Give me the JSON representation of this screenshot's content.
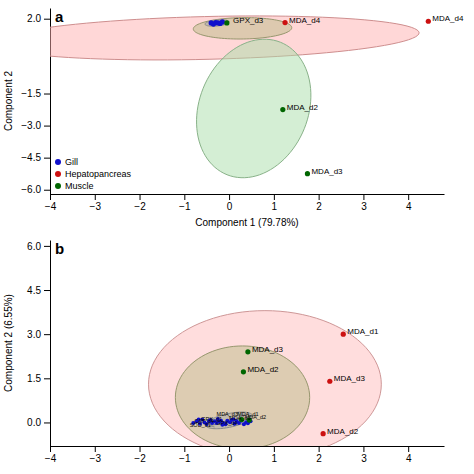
{
  "chart_data": [
    {
      "type": "scatter",
      "title": "a",
      "x_label": "Component 1 (79.78%)",
      "y_label": "Component 2",
      "xlim": [
        -4,
        4.8
      ],
      "ylim": [
        -6.2,
        2.5
      ],
      "xticks": [
        {
          "value": -4,
          "label": "−4"
        },
        {
          "value": -3,
          "label": "−3"
        },
        {
          "value": -2,
          "label": "−2"
        },
        {
          "value": -1,
          "label": "−1"
        },
        0,
        1,
        2,
        3,
        4
      ],
      "yticks": [
        {
          "value": 2.0,
          "label": "2.0"
        },
        {
          "value": -1.5,
          "label": "−1.5"
        },
        {
          "value": -3.0,
          "label": "−3.0"
        },
        {
          "value": -4.5,
          "label": "−4.5"
        },
        {
          "value": -6.0,
          "label": "−6.0"
        }
      ],
      "legend": "lower left",
      "series": [
        {
          "name": "Gill",
          "color": "#1010cc",
          "x": [
            -0.3,
            -0.2,
            -0.35,
            -0.15,
            -0.25,
            -0.4
          ],
          "values": [
            1.82,
            1.78,
            1.75,
            1.85,
            1.8,
            1.8
          ]
        },
        {
          "name": "Hepatopancreas",
          "color": "#cc1010",
          "x": [
            1.25,
            4.45
          ],
          "values": [
            1.82,
            1.88
          ]
        },
        {
          "name": "Muscle",
          "color": "#006600",
          "x": [
            -0.05,
            1.2,
            1.75
          ],
          "values": [
            1.8,
            -2.25,
            -5.25
          ]
        }
      ],
      "ellipses": [
        {
          "cx": -0.5,
          "cy": 1.1,
          "width": 9.5,
          "height": 2.0,
          "angle": 3,
          "color": "#ffb0b0"
        },
        {
          "cx": 0.3,
          "cy": 1.55,
          "width": 2.2,
          "height": 1.0,
          "angle": 2,
          "color": "#bbbb88"
        },
        {
          "cx": 0.55,
          "cy": -2.2,
          "width": 2.5,
          "height": 6.5,
          "angle": -5,
          "color": "#aaddaa"
        },
        {
          "cx": -0.27,
          "cy": 1.8,
          "width": 0.55,
          "height": 0.28,
          "angle": 15,
          "color": "#aaaaaa"
        }
      ],
      "annotations": [
        {
          "x": 0.0,
          "y": 1.8,
          "text": "GPX_d3"
        },
        {
          "x": 1.25,
          "y": 1.82,
          "text": "MDA_d4"
        },
        {
          "x": 4.45,
          "y": 1.88,
          "text": "MDA_d4"
        },
        {
          "x": 1.2,
          "y": -2.25,
          "text": "MDA_d2"
        },
        {
          "x": 1.75,
          "y": -5.25,
          "text": "MDA_d3"
        }
      ]
    },
    {
      "type": "scatter",
      "title": "b",
      "y_label": "Component 2 (6.55%)",
      "xlim": [
        -4,
        4.8
      ],
      "ylim": [
        -0.8,
        6.2
      ],
      "xticks": [
        {
          "value": -4,
          "label": "−4"
        },
        {
          "value": -3,
          "label": "−3"
        },
        {
          "value": -2,
          "label": "−2"
        },
        {
          "value": -1,
          "label": "−1"
        },
        0,
        1,
        2,
        3,
        4
      ],
      "yticks": [
        {
          "value": 0.0,
          "label": "0.0"
        },
        {
          "value": 1.5,
          "label": "1.5"
        },
        {
          "value": 3.0,
          "label": "3.0"
        },
        {
          "value": 4.5,
          "label": "4.5"
        },
        {
          "value": 6.0,
          "label": "6.0"
        }
      ],
      "series": [
        {
          "color": "#1010cc",
          "x": [
            -0.55,
            -0.45,
            -0.38,
            -0.5,
            -0.42,
            -0.32,
            -0.28,
            -0.6,
            -0.65,
            -0.22,
            -0.18,
            -0.12,
            -0.72,
            -0.68,
            -0.8,
            -0.08,
            -0.04,
            0.02,
            0.06,
            0.12,
            0.17,
            0.22,
            0.27,
            0.33,
            0.38,
            0.42,
            0.48,
            -0.15,
            -0.25,
            0.1
          ],
          "values": [
            0.0,
            0.05,
            -0.02,
            -0.05,
            0.08,
            0.04,
            -0.02,
            0.1,
            -0.04,
            0.02,
            0.06,
            -0.03,
            0.04,
            0.1,
            -0.02,
            -0.06,
            0.06,
            0.01,
            0.08,
            -0.04,
            0.04,
            -0.02,
            0.06,
            -0.06,
            0.01,
            -0.03,
            0.04,
            -0.08,
            0.12,
            0.1
          ]
        },
        {
          "color": "#cc1010",
          "x": [
            2.55,
            2.25,
            2.1
          ],
          "values": [
            3.0,
            1.4,
            -0.38
          ]
        },
        {
          "color": "#006600",
          "x": [
            0.42,
            0.32,
            0.28,
            0.45
          ],
          "values": [
            2.4,
            1.72,
            0.1,
            0.08
          ]
        }
      ],
      "ellipses": [
        {
          "cx": 0.8,
          "cy": 1.3,
          "width": 5.2,
          "height": 5.0,
          "angle": 0,
          "color": "#ffbbbb"
        },
        {
          "cx": 0.3,
          "cy": 0.85,
          "width": 3.0,
          "height": 3.5,
          "angle": 0,
          "color": "#bbbb88"
        },
        {
          "cx": 0.0,
          "cy": 0.07,
          "width": 1.1,
          "height": 0.45,
          "angle": 20,
          "color": "#aaaaaa"
        }
      ],
      "arrows": [
        {
          "x": [
            0.0,
            0.35
          ],
          "y": [
            0.0,
            0.25
          ],
          "color": "gray"
        },
        {
          "x": [
            0.0,
            -0.45
          ],
          "y": [
            0.0,
            -0.1
          ],
          "color": "gray"
        }
      ],
      "annotations": [
        {
          "x": 2.55,
          "y": 3.0,
          "text": "MDA_d1"
        },
        {
          "x": 2.25,
          "y": 1.4,
          "text": "MDA_d3"
        },
        {
          "x": 2.1,
          "y": -0.38,
          "text": "MDA_d2"
        },
        {
          "x": 0.42,
          "y": 2.4,
          "text": "MDA_d3"
        },
        {
          "x": 0.32,
          "y": 1.72,
          "text": "MDA_d2"
        }
      ],
      "cluster_labels": [
        {
          "x": -0.28,
          "y": 0.22,
          "text": "MDA_d3"
        },
        {
          "x": 0.18,
          "y": 0.22,
          "text": "MDA_d1"
        },
        {
          "x": 0.35,
          "y": 0.12,
          "text": "MDA_d2"
        },
        {
          "x": -0.62,
          "y": 0.06,
          "text": "GPX_d1"
        },
        {
          "x": -0.78,
          "y": -0.02,
          "text": "CAT_d4"
        },
        {
          "x": -0.28,
          "y": -0.1,
          "text": "GPX_d4"
        },
        {
          "x": -0.88,
          "y": -0.15,
          "text": "SOD_d1"
        },
        {
          "x": 0.0,
          "y": 0.1,
          "text": "MDA_d1"
        }
      ]
    }
  ]
}
